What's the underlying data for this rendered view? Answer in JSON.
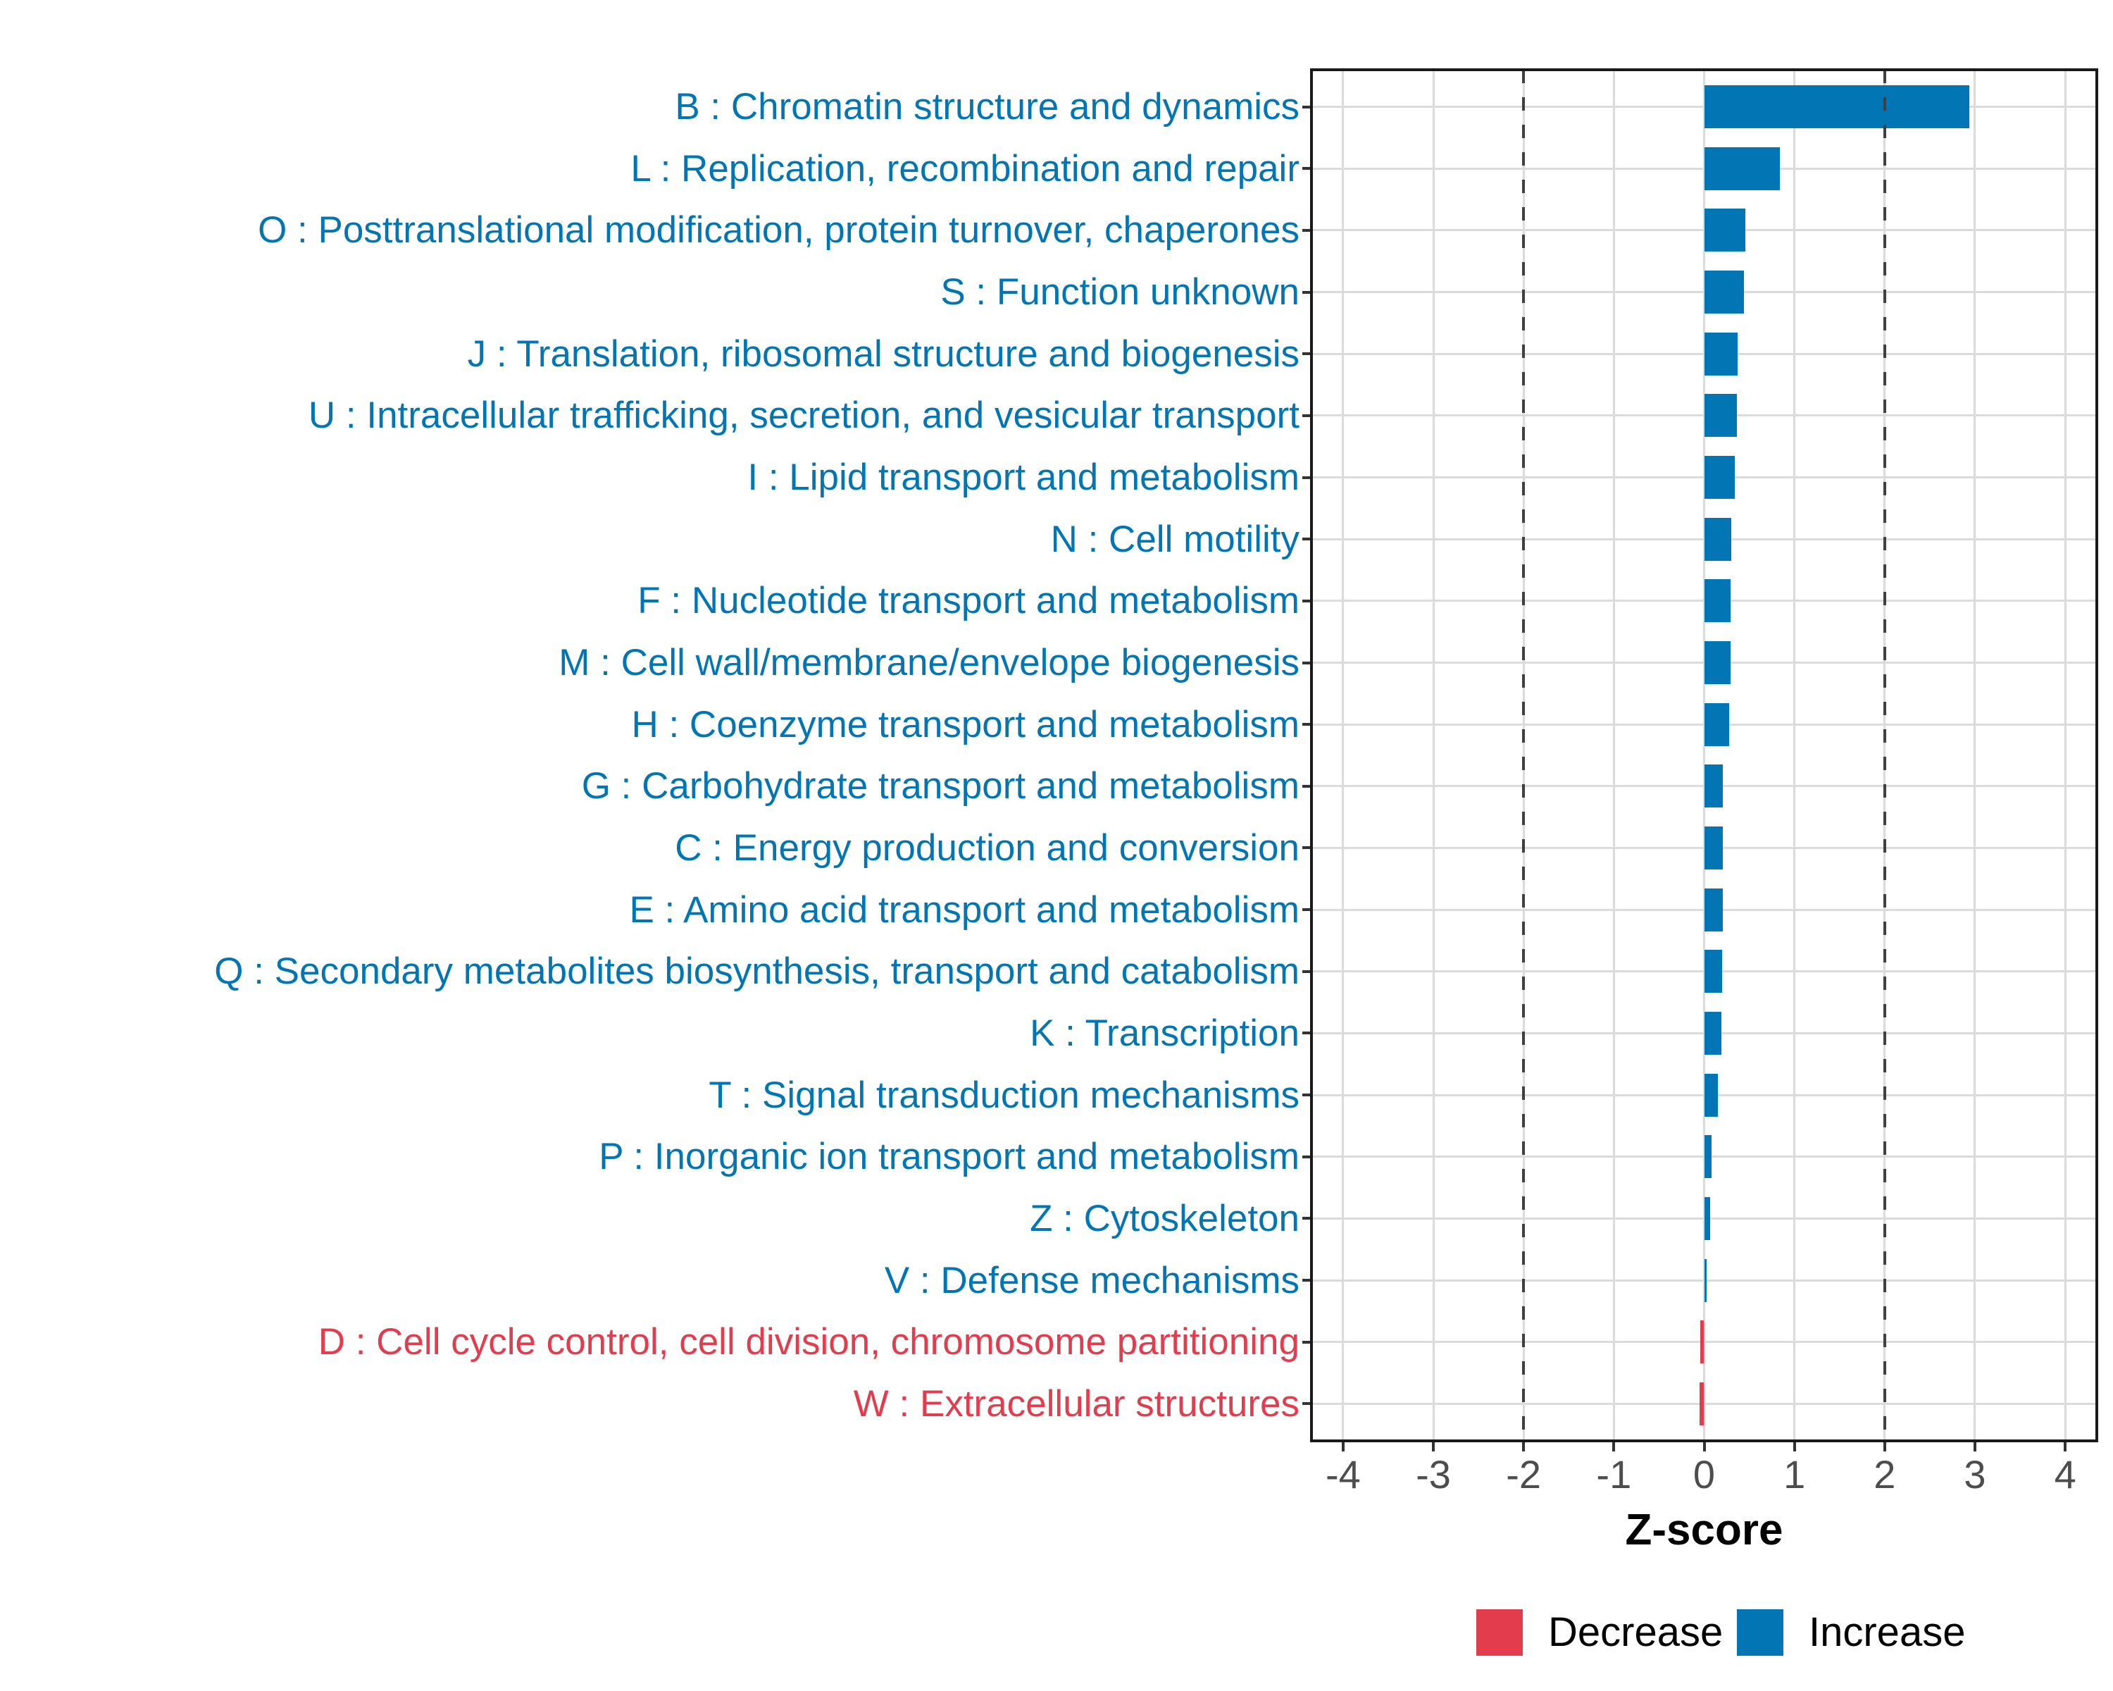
{
  "chart_data": {
    "type": "bar",
    "orientation": "horizontal",
    "title": "",
    "xlabel": "Z-score",
    "ylabel": "",
    "xlim": [
      -4.35,
      4.35
    ],
    "x_ticks": [
      -4,
      -3,
      -2,
      -1,
      0,
      1,
      2,
      3,
      4
    ],
    "x_tick_labels": [
      "-4",
      "-3",
      "-2",
      "-1",
      "0",
      "1",
      "2",
      "3",
      "4"
    ],
    "reference_lines": [
      -2,
      2
    ],
    "grid": "major-vertical-and-row-lines",
    "legend_position": "bottom-right",
    "categories": [
      "B : Chromatin structure and dynamics",
      "L : Replication, recombination and repair",
      "O : Posttranslational modification, protein turnover, chaperones",
      "S : Function unknown",
      "J : Translation, ribosomal structure and biogenesis",
      "U : Intracellular trafficking, secretion, and vesicular transport",
      "I : Lipid transport and metabolism",
      "N : Cell motility",
      "F : Nucleotide transport and metabolism",
      "M : Cell wall/membrane/envelope biogenesis",
      "H : Coenzyme transport and metabolism",
      "G : Carbohydrate transport and metabolism",
      "C : Energy production and conversion",
      "E : Amino acid transport and metabolism",
      "Q : Secondary metabolites biosynthesis, transport and catabolism",
      "K : Transcription",
      "T : Signal transduction mechanisms",
      "P : Inorganic ion transport and metabolism",
      "Z : Cytoskeleton",
      "V : Defense mechanisms",
      "D : Cell cycle control, cell division, chromosome partitioning",
      "W : Extracellular structures"
    ],
    "values": [
      2.94,
      0.84,
      0.46,
      0.44,
      0.37,
      0.36,
      0.34,
      0.3,
      0.29,
      0.29,
      0.28,
      0.21,
      0.21,
      0.21,
      0.2,
      0.19,
      0.15,
      0.08,
      0.07,
      0.03,
      -0.04,
      -0.05
    ],
    "groups": [
      "Increase",
      "Increase",
      "Increase",
      "Increase",
      "Increase",
      "Increase",
      "Increase",
      "Increase",
      "Increase",
      "Increase",
      "Increase",
      "Increase",
      "Increase",
      "Increase",
      "Increase",
      "Increase",
      "Increase",
      "Increase",
      "Increase",
      "Increase",
      "Decrease",
      "Decrease"
    ],
    "legend": [
      {
        "label": "Decrease",
        "color": "#E23C4D"
      },
      {
        "label": "Increase",
        "color": "#0275B4"
      }
    ],
    "colors": {
      "increase": "#0275B4",
      "decrease": "#E23C4D",
      "gridline": "#DBDBDB",
      "reference_line": "#404040",
      "axis_text": "#4D4D4D",
      "panel_border": "#1A1A1A",
      "tick_mark": "#333333",
      "axis_title": "#000000"
    }
  }
}
